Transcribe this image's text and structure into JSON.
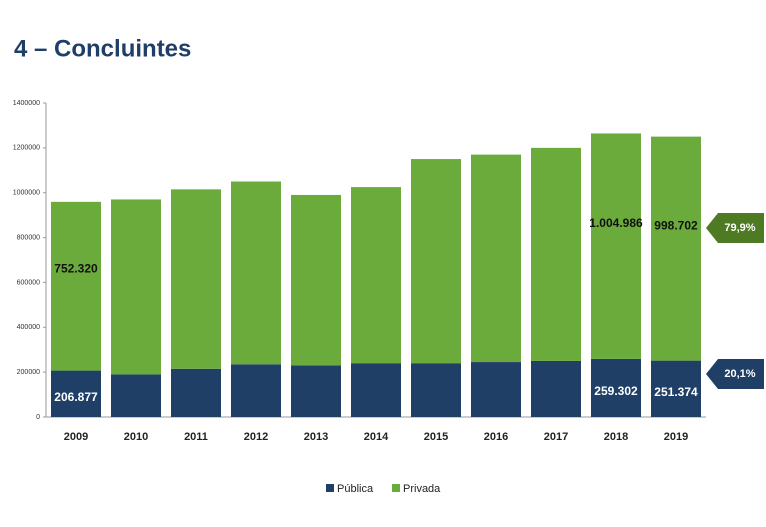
{
  "chart_data": {
    "type": "stacked_bar",
    "title": "4 – Concluintes",
    "categories": [
      "2009",
      "2010",
      "2011",
      "2012",
      "2013",
      "2014",
      "2015",
      "2016",
      "2017",
      "2018",
      "2019"
    ],
    "series": [
      {
        "name": "Pública",
        "color": "#1f3f66",
        "values": [
          206877,
          190000,
          215000,
          235000,
          230000,
          240000,
          240000,
          245000,
          250000,
          259302,
          251374
        ],
        "value_labels": [
          "206.877",
          null,
          null,
          null,
          null,
          null,
          null,
          null,
          null,
          "259.302",
          "251.374"
        ]
      },
      {
        "name": "Privada",
        "color": "#6aab3c",
        "values": [
          752320,
          780000,
          800000,
          815000,
          760000,
          785000,
          910000,
          925000,
          950000,
          1004986,
          998702
        ],
        "value_labels": [
          "752.320",
          null,
          null,
          null,
          null,
          null,
          null,
          null,
          null,
          "1.004.986",
          "998.702"
        ]
      }
    ],
    "annotations": [
      "79,9%",
      "20,1%"
    ],
    "ylim": [
      0,
      1400000
    ],
    "yticks": [
      0,
      200000,
      400000,
      600000,
      800000,
      1000000,
      1200000,
      1400000
    ],
    "legend": "bottom"
  }
}
